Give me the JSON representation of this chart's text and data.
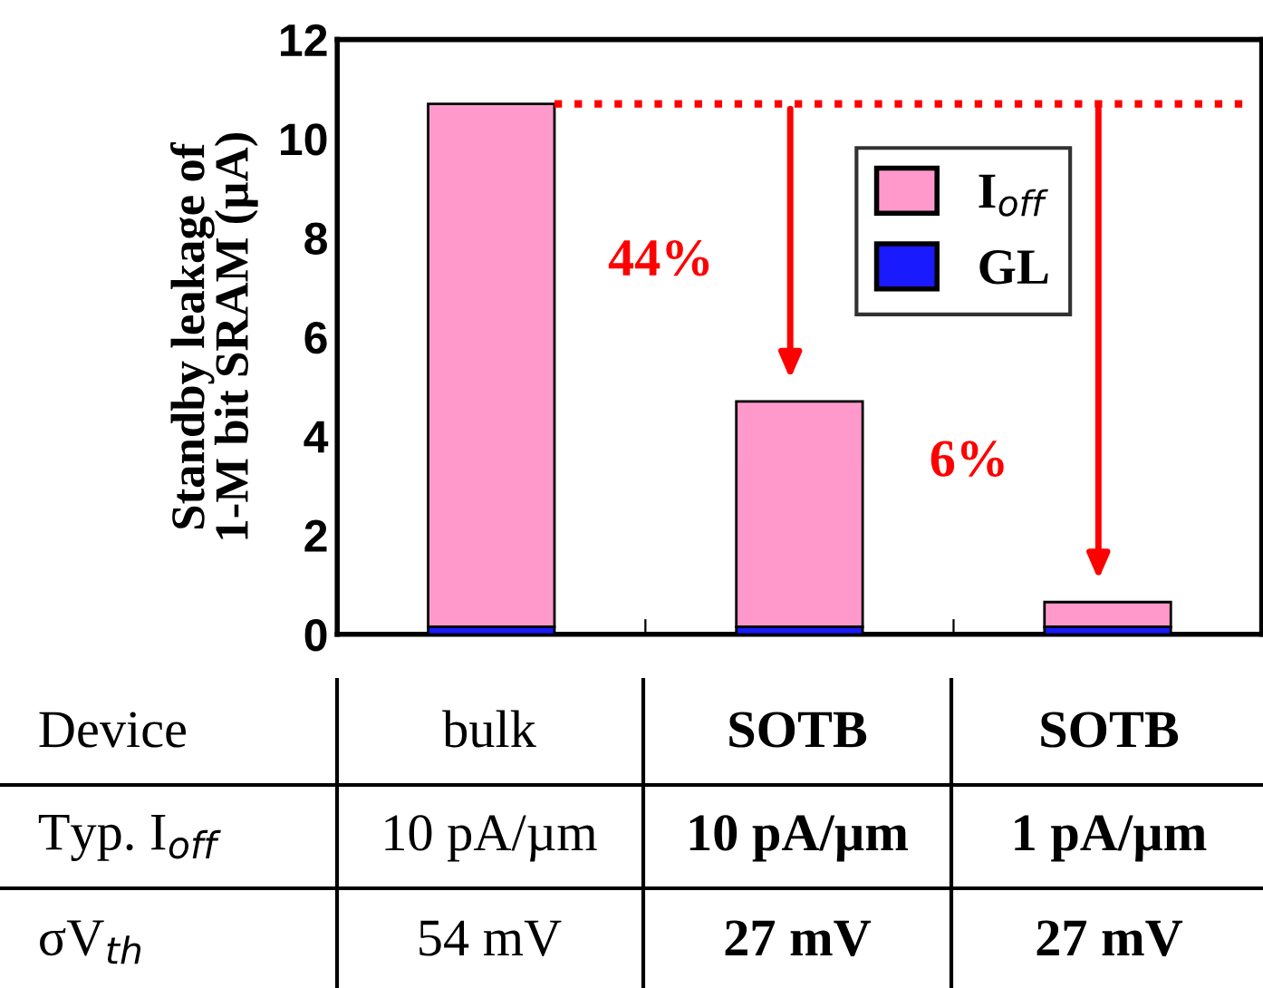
{
  "chart_data": {
    "type": "bar",
    "stacked": true,
    "ylabel": "Standby leakage of\n1-M bit SRAM (µA)",
    "categories": [
      "bulk",
      "SOTB",
      "SOTB"
    ],
    "series": [
      {
        "name": "GL",
        "color": "#1a1aff",
        "values": [
          0.15,
          0.15,
          0.15
        ]
      },
      {
        "name": "I$_{off}$",
        "color": "#ff99cc",
        "values": [
          10.55,
          4.55,
          0.5
        ]
      }
    ],
    "ylim": [
      0,
      12
    ],
    "yticks": [
      0,
      2,
      4,
      6,
      8,
      10,
      12
    ],
    "tick_labels": "y",
    "grid": false,
    "legend": "top right",
    "ref_lines": [
      {
        "axis": "y",
        "value": 10.7,
        "color": "#ff0000",
        "line_style": "dotted"
      }
    ],
    "annotations": [
      "44%",
      "6%",
      "Device",
      "Typ. I$_{off}$",
      "σV$_{th}$",
      "10 pA/µm",
      "54 mV",
      "10 pA/µm",
      "27 mV",
      "1 pA/µm",
      "27 mV"
    ]
  }
}
